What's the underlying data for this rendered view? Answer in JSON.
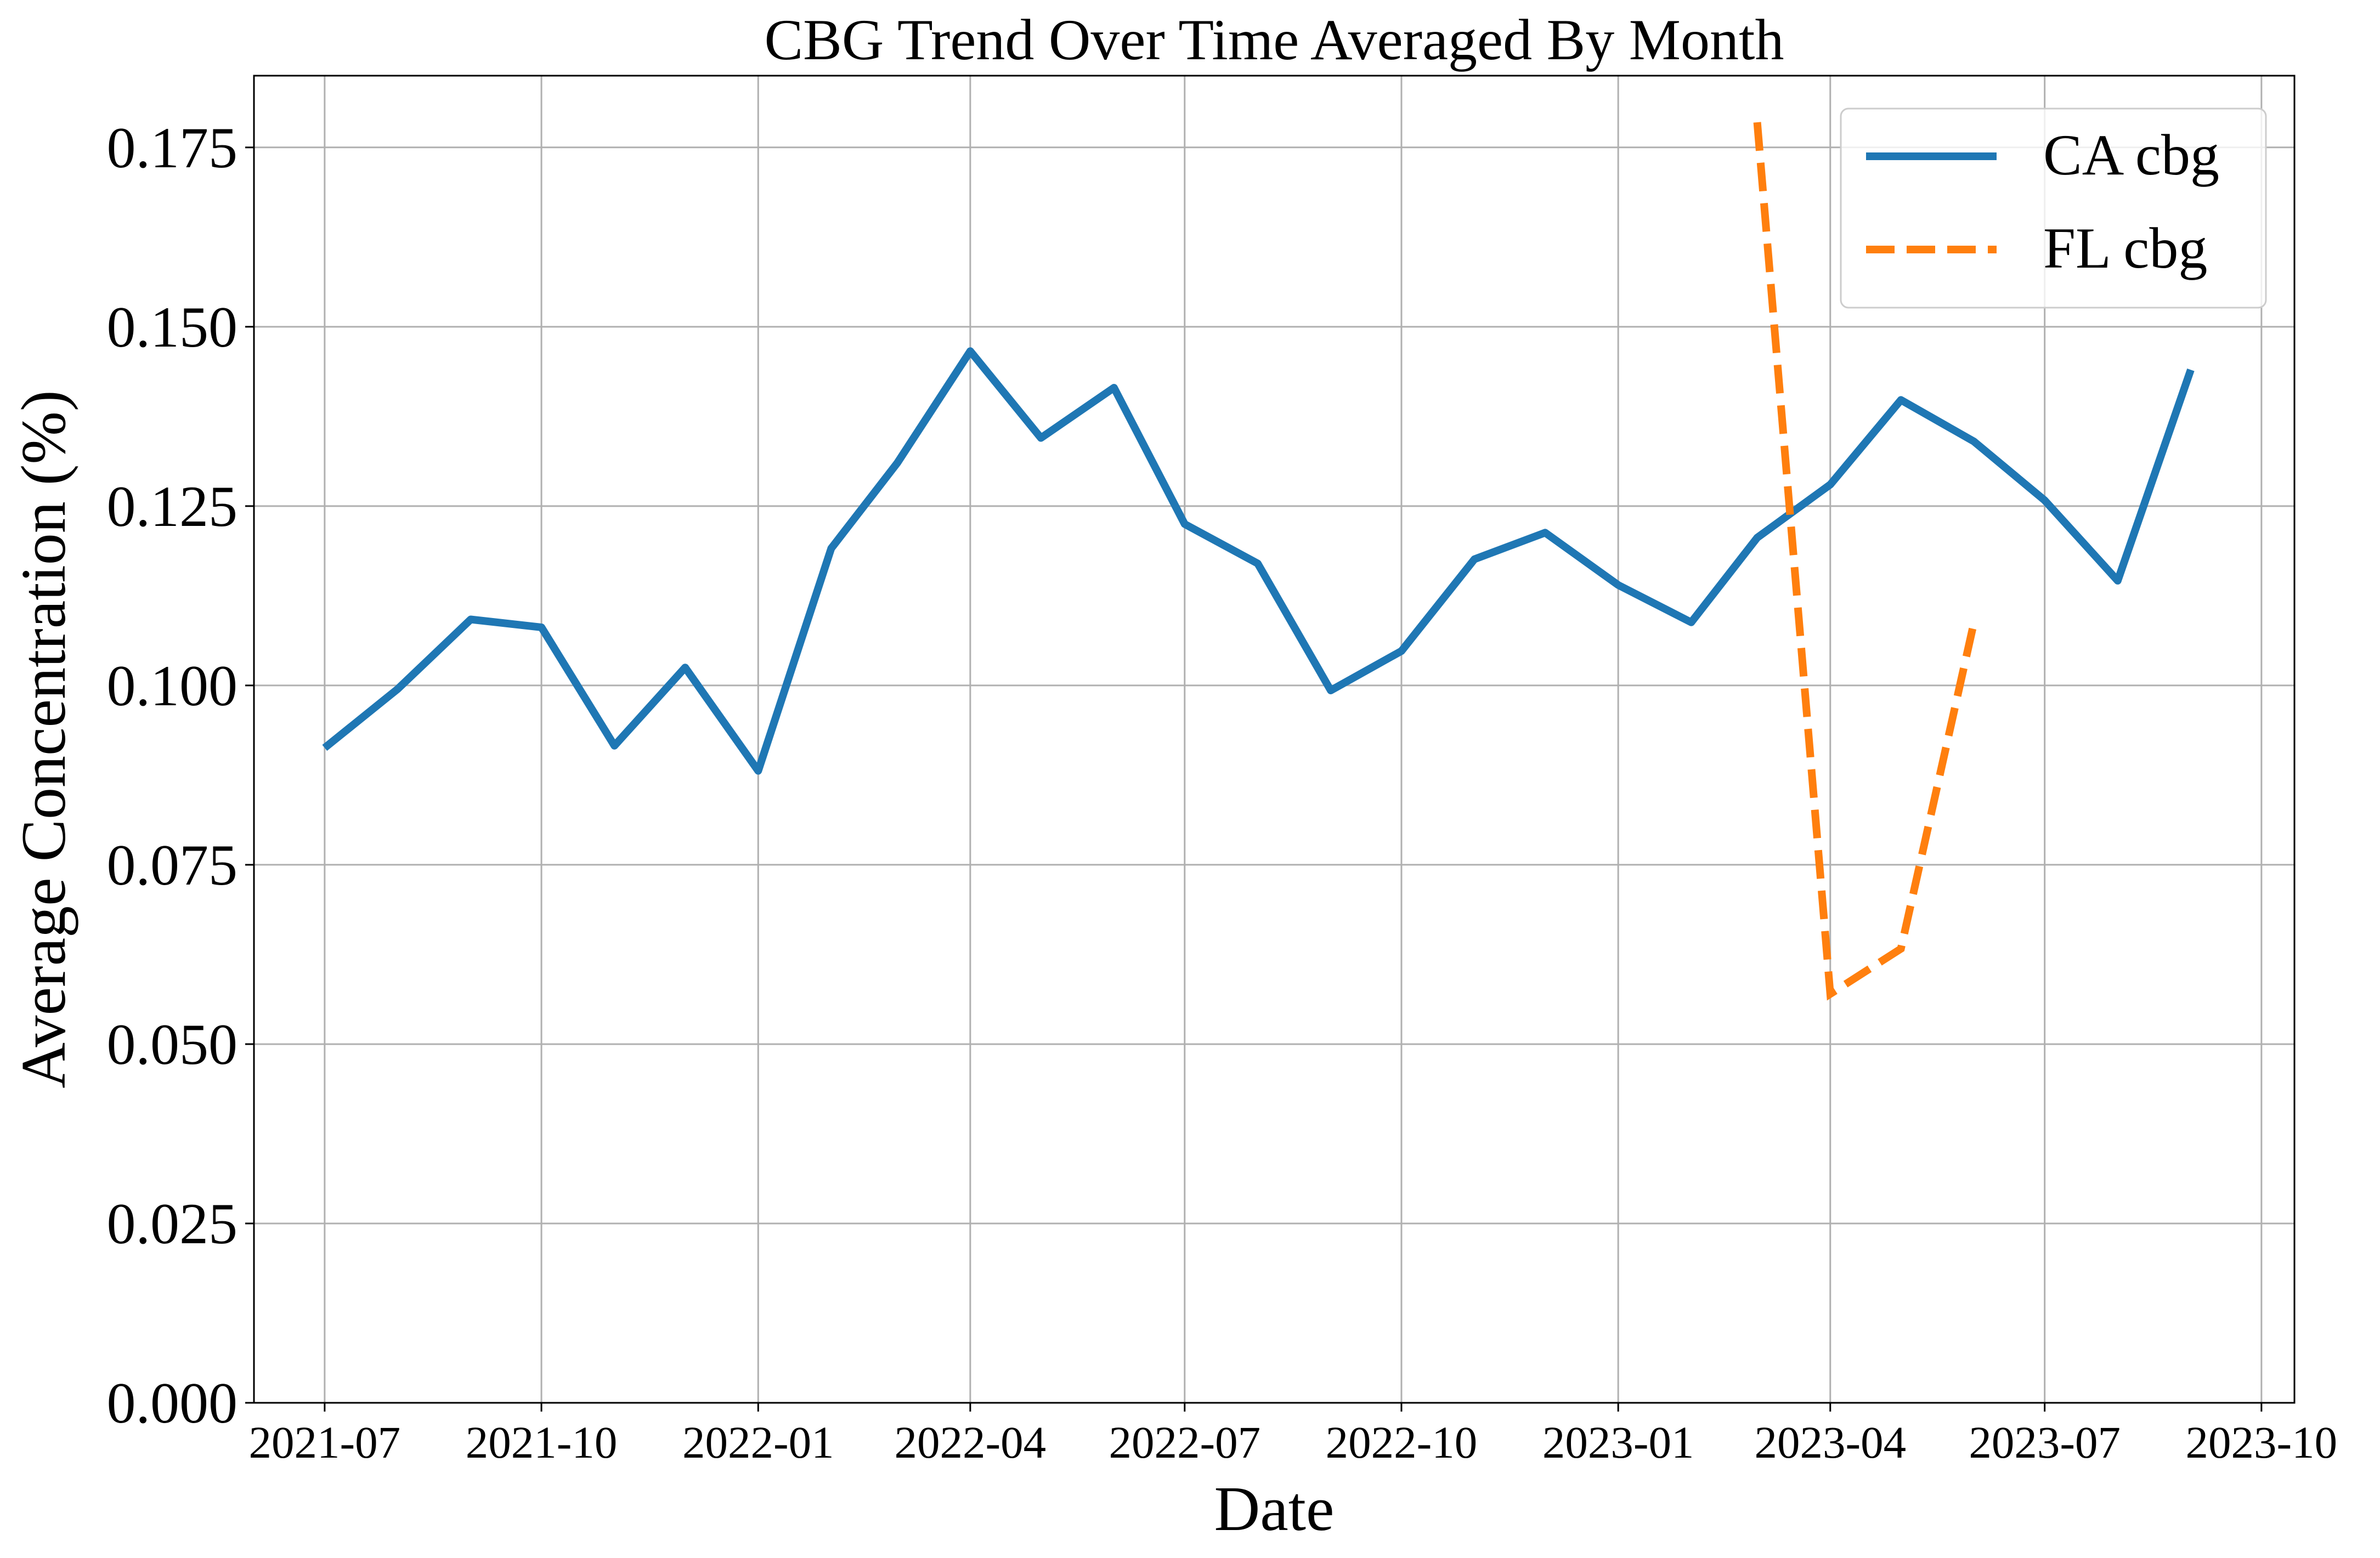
{
  "chart_data": {
    "type": "line",
    "title": "CBG Trend Over Time Averaged By Month",
    "xlabel": "Date",
    "ylabel": "Average Concentration (%)",
    "x_range": [
      "2021-06-01",
      "2023-10-15"
    ],
    "ylim": [
      0.0,
      0.185
    ],
    "x_ticks": [
      "2021-07",
      "2021-10",
      "2022-01",
      "2022-04",
      "2022-07",
      "2022-10",
      "2023-01",
      "2023-04",
      "2023-07",
      "2023-10"
    ],
    "y_ticks": [
      "0.000",
      "0.025",
      "0.050",
      "0.075",
      "0.100",
      "0.125",
      "0.150",
      "0.175"
    ],
    "grid": true,
    "legend_position": "top-right",
    "series": [
      {
        "name": "CA cbg",
        "color": "#1f77b4",
        "style": "solid",
        "x": [
          "2021-07-01",
          "2021-08-01",
          "2021-09-01",
          "2021-10-01",
          "2021-11-01",
          "2021-12-01",
          "2022-01-01",
          "2022-02-01",
          "2022-03-01",
          "2022-04-01",
          "2022-05-01",
          "2022-06-01",
          "2022-07-01",
          "2022-08-01",
          "2022-09-01",
          "2022-10-01",
          "2022-11-01",
          "2022-12-01",
          "2023-01-01",
          "2023-02-01",
          "2023-03-01",
          "2023-04-01",
          "2023-05-01",
          "2023-06-01",
          "2023-07-01",
          "2023-08-01",
          "2023-09-01"
        ],
        "values": [
          0.0913,
          0.0995,
          0.1092,
          0.1081,
          0.0916,
          0.1025,
          0.0881,
          0.1191,
          0.131,
          0.1466,
          0.1345,
          0.1415,
          0.1225,
          0.117,
          0.0993,
          0.1048,
          0.1176,
          0.1213,
          0.114,
          0.1088,
          0.1206,
          0.128,
          0.1398,
          0.134,
          0.1258,
          0.1146,
          0.144
        ]
      },
      {
        "name": "FL cbg",
        "color": "#ff7f0e",
        "style": "dashed",
        "x": [
          "2023-03-01",
          "2023-04-01",
          "2023-05-01",
          "2023-06-01"
        ],
        "values": [
          0.1785,
          0.057,
          0.0633,
          0.1088
        ]
      }
    ]
  }
}
